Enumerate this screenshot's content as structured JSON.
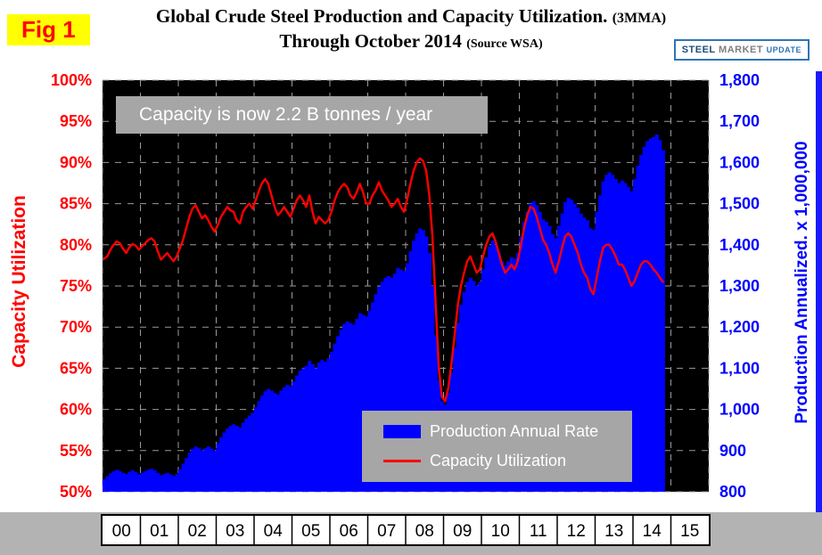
{
  "header": {
    "fig_label": "Fig 1",
    "title_main": "Global Crude Steel Production and Capacity Utilization.",
    "title_suffix": "(3MMA)",
    "subtitle": "Through October 2014",
    "source": "(Source WSA)",
    "logo": {
      "word1": "STEEL",
      "word2": "MARKET",
      "word3": "UPDATE"
    }
  },
  "annotation": {
    "text": "Capacity is now 2.2 B tonnes / year"
  },
  "legend": {
    "items": [
      {
        "label": "Production Annual Rate",
        "color": "#0000ff",
        "type": "bar"
      },
      {
        "label": "Capacity Utilization",
        "color": "#ff0000",
        "type": "line"
      }
    ]
  },
  "chart_data": {
    "type": "bar",
    "combo": "bar + line, dual axis",
    "title": "Global Crude Steel Production and Capacity Utilization. (3MMA) Through October 2014 (Source WSA)",
    "frequency": "monthly",
    "start": "2000-01",
    "end": "2014-10",
    "categories": [
      "00",
      "01",
      "02",
      "03",
      "04",
      "05",
      "06",
      "07",
      "08",
      "09",
      "10",
      "11",
      "12",
      "13",
      "14",
      "15"
    ],
    "plot_background": "#000000",
    "grid": "dashed gray, horizontal every 5% / 100 units, vertical every year",
    "left_axis": {
      "label": "Capacity Utilization",
      "color": "#ff0000",
      "min": 50,
      "max": 100,
      "step": 5,
      "ticks": [
        "50%",
        "55%",
        "60%",
        "65%",
        "70%",
        "75%",
        "80%",
        "85%",
        "90%",
        "95%",
        "100%"
      ]
    },
    "right_axis": {
      "label": "Production Annualized. x 1,000,000",
      "color": "#0000ff",
      "min": 800,
      "max": 1800,
      "step": 100,
      "ticks": [
        "800",
        "900",
        "1,000",
        "1,100",
        "1,200",
        "1,300",
        "1,400",
        "1,500",
        "1,600",
        "1,700",
        "1,800"
      ]
    },
    "series": [
      {
        "name": "Production Annual Rate",
        "type": "bar",
        "axis": "right",
        "color": "#0000ff",
        "values_by_year": {
          "2000": [
            830,
            838,
            845,
            850,
            853,
            850,
            846,
            843,
            848,
            852,
            848,
            842
          ],
          "2001": [
            846,
            850,
            854,
            856,
            852,
            846,
            840,
            843,
            846,
            842,
            838,
            844
          ],
          "2002": [
            855,
            868,
            882,
            895,
            905,
            910,
            906,
            900,
            906,
            910,
            905,
            900
          ],
          "2003": [
            918,
            932,
            944,
            954,
            960,
            964,
            960,
            956,
            968,
            978,
            985,
            992
          ],
          "2004": [
            1005,
            1020,
            1034,
            1044,
            1050,
            1046,
            1040,
            1036,
            1046,
            1054,
            1060,
            1056
          ],
          "2005": [
            1068,
            1082,
            1094,
            1100,
            1106,
            1118,
            1110,
            1100,
            1114,
            1120,
            1116,
            1124
          ],
          "2006": [
            1140,
            1160,
            1178,
            1194,
            1208,
            1214,
            1210,
            1206,
            1220,
            1234,
            1230,
            1226
          ],
          "2007": [
            1240,
            1260,
            1280,
            1298,
            1310,
            1320,
            1324,
            1320,
            1330,
            1344,
            1340,
            1336
          ],
          "2008": [
            1355,
            1385,
            1410,
            1428,
            1440,
            1436,
            1420,
            1380,
            1300,
            1180,
            1070,
            1020
          ],
          "2009": [
            1012,
            1040,
            1090,
            1150,
            1210,
            1254,
            1286,
            1310,
            1320,
            1312,
            1300,
            1310
          ],
          "2010": [
            1340,
            1370,
            1396,
            1410,
            1400,
            1380,
            1360,
            1350,
            1360,
            1370,
            1366,
            1380
          ],
          "2011": [
            1420,
            1455,
            1480,
            1500,
            1506,
            1496,
            1480,
            1462,
            1456,
            1446,
            1426,
            1416
          ],
          "2012": [
            1446,
            1476,
            1504,
            1514,
            1510,
            1500,
            1490,
            1476,
            1466,
            1460,
            1440,
            1436
          ],
          "2013": [
            1480,
            1520,
            1554,
            1570,
            1576,
            1570,
            1560,
            1550,
            1556,
            1550,
            1540,
            1530
          ],
          "2014": [
            1560,
            1592,
            1618,
            1638,
            1652,
            1658,
            1662,
            1668,
            1655,
            1630
          ]
        }
      },
      {
        "name": "Capacity Utilization",
        "type": "line",
        "axis": "left",
        "color": "#ff0000",
        "values_by_year": {
          "2000": [
            78.3,
            78.6,
            79.4,
            80.0,
            80.4,
            80.2,
            79.5,
            79.0,
            79.7,
            80.1,
            79.9,
            79.4
          ],
          "2001": [
            79.8,
            80.2,
            80.6,
            80.8,
            80.4,
            79.2,
            78.2,
            78.6,
            79.0,
            78.5,
            78.0,
            78.6
          ],
          "2002": [
            79.6,
            80.6,
            82.0,
            83.4,
            84.4,
            84.8,
            84.0,
            83.2,
            83.6,
            83.0,
            82.2,
            81.6
          ],
          "2003": [
            82.4,
            83.4,
            84.0,
            84.6,
            84.2,
            84.0,
            83.0,
            82.6,
            84.0,
            84.6,
            85.0,
            84.4
          ],
          "2004": [
            85.4,
            86.5,
            87.5,
            88.0,
            87.4,
            86.0,
            84.6,
            83.6,
            84.0,
            84.6,
            84.0,
            83.4
          ],
          "2005": [
            84.4,
            85.4,
            86.0,
            85.4,
            84.6,
            86.0,
            84.0,
            82.6,
            83.4,
            83.0,
            82.6,
            83.0
          ],
          "2006": [
            84.0,
            85.4,
            86.4,
            87.0,
            87.4,
            87.0,
            86.0,
            85.6,
            86.4,
            87.4,
            86.4,
            85.0
          ],
          "2007": [
            85.0,
            86.0,
            86.6,
            87.6,
            86.6,
            86.0,
            85.4,
            84.6,
            85.0,
            85.6,
            84.6,
            84.0
          ],
          "2008": [
            85.6,
            87.4,
            89.0,
            90.0,
            90.5,
            90.2,
            89.0,
            86.0,
            81.0,
            73.0,
            65.0,
            61.5
          ],
          "2009": [
            61.0,
            62.6,
            65.6,
            69.0,
            72.6,
            75.0,
            76.6,
            78.0,
            78.6,
            77.6,
            76.6,
            77.0
          ],
          "2010": [
            78.6,
            80.0,
            81.0,
            81.4,
            80.4,
            79.0,
            77.6,
            76.6,
            77.0,
            77.6,
            77.0,
            78.0
          ],
          "2011": [
            80.0,
            82.0,
            83.6,
            84.6,
            84.4,
            83.4,
            82.0,
            80.6,
            80.0,
            79.0,
            77.6,
            76.6
          ],
          "2012": [
            78.0,
            79.6,
            81.0,
            81.4,
            81.0,
            80.0,
            79.0,
            77.6,
            76.6,
            76.0,
            74.6,
            74.0
          ],
          "2013": [
            76.0,
            78.0,
            79.6,
            80.0,
            80.0,
            79.4,
            78.6,
            77.6,
            77.6,
            77.0,
            76.0,
            75.0
          ],
          "2014": [
            75.6,
            76.6,
            77.6,
            78.0,
            78.0,
            77.6,
            77.0,
            76.6,
            76.0,
            75.5
          ]
        }
      }
    ]
  }
}
